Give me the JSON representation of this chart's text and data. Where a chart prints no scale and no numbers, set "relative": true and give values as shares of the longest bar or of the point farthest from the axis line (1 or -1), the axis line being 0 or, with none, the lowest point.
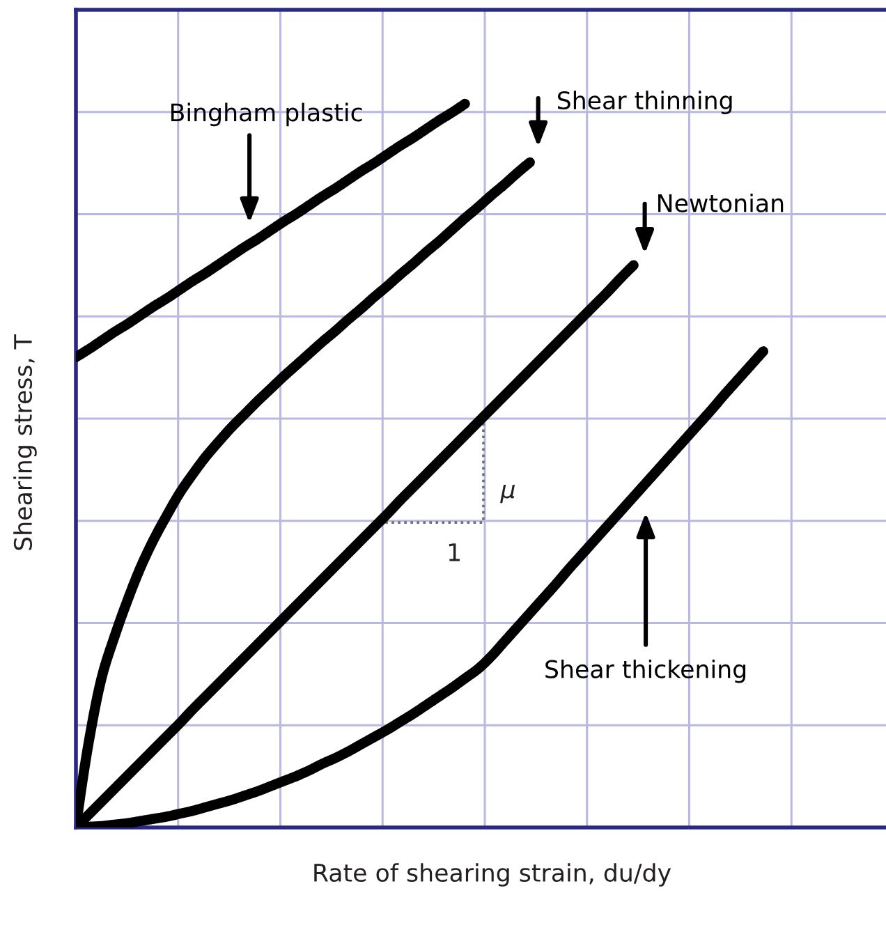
{
  "chart_data": {
    "type": "line",
    "relative": true,
    "grid": true,
    "xlabel": "Rate of shearing strain, du/dy",
    "ylabel": "Shearing stress, T",
    "categories": [
      null,
      null,
      null,
      null,
      null,
      null,
      null,
      null,
      null,
      null,
      null,
      null,
      null,
      null,
      null,
      null,
      null,
      null,
      null,
      null,
      null,
      null,
      null,
      null,
      null,
      null,
      null,
      null,
      null,
      null,
      null,
      null,
      null,
      null,
      null,
      null,
      null,
      null,
      null,
      null,
      null,
      null,
      null,
      null,
      null,
      null,
      null,
      null,
      null,
      null,
      null,
      null,
      null,
      null,
      null,
      null,
      null,
      null,
      null,
      null,
      null,
      null,
      null,
      null
    ],
    "series": [
      {
        "name": "Bingham plastic",
        "color": "#000000",
        "values": [
          0.65,
          0.661,
          0.673,
          0.685,
          0.696,
          0.708,
          0.72,
          0.731,
          0.743,
          0.755,
          0.766,
          0.778,
          0.79,
          0.802,
          0.813,
          0.825,
          0.837,
          0.848,
          0.86,
          0.872,
          0.883,
          0.895,
          0.907,
          0.918,
          0.93,
          0.942,
          0.953,
          0.965,
          0.977,
          0.988,
          1.0,
          null,
          null,
          null,
          null,
          null,
          null,
          null,
          null,
          null,
          null,
          null,
          null,
          null,
          null,
          null,
          null,
          null,
          null,
          null,
          null,
          null,
          null,
          null,
          null,
          null,
          null,
          null,
          null,
          null,
          null,
          null,
          null,
          null
        ]
      },
      {
        "name": "Shear thinning",
        "color": "#000000",
        "values": [
          0,
          0.119,
          0.208,
          0.265,
          0.315,
          0.36,
          0.398,
          0.431,
          0.462,
          0.488,
          0.512,
          0.533,
          0.553,
          0.571,
          0.589,
          0.606,
          0.623,
          0.639,
          0.655,
          0.671,
          0.686,
          0.702,
          0.717,
          0.733,
          0.748,
          0.764,
          0.779,
          0.795,
          0.81,
          0.826,
          0.842,
          0.857,
          0.873,
          0.888,
          0.904,
          0.919,
          null,
          null,
          null,
          null,
          null,
          null,
          null,
          null,
          null,
          null,
          null,
          null,
          null,
          null,
          null,
          null,
          null,
          null,
          null,
          null,
          null,
          null,
          null,
          null,
          null,
          null,
          null,
          null
        ]
      },
      {
        "name": "Newtonian",
        "color": "#000000",
        "values": [
          0,
          0.018,
          0.036,
          0.054,
          0.072,
          0.09,
          0.108,
          0.126,
          0.144,
          0.163,
          0.181,
          0.199,
          0.217,
          0.235,
          0.253,
          0.271,
          0.289,
          0.307,
          0.325,
          0.343,
          0.361,
          0.379,
          0.397,
          0.415,
          0.433,
          0.452,
          0.47,
          0.488,
          0.506,
          0.524,
          0.542,
          0.56,
          0.578,
          0.596,
          0.614,
          0.632,
          0.65,
          0.668,
          0.686,
          0.704,
          0.722,
          0.74,
          0.759,
          0.777,
          null,
          null,
          null,
          null,
          null,
          null,
          null,
          null,
          null,
          null,
          null,
          null,
          null,
          null,
          null,
          null,
          null,
          null,
          null,
          null
        ]
      },
      {
        "name": "Shear thickening",
        "color": "#000000",
        "values": [
          0,
          0.001,
          0.002,
          0.004,
          0.006,
          0.009,
          0.012,
          0.015,
          0.019,
          0.023,
          0.028,
          0.033,
          0.038,
          0.044,
          0.05,
          0.057,
          0.064,
          0.071,
          0.079,
          0.088,
          0.096,
          0.105,
          0.115,
          0.125,
          0.135,
          0.146,
          0.157,
          0.169,
          0.181,
          0.193,
          0.206,
          0.219,
          0.236,
          0.256,
          0.276,
          0.296,
          0.316,
          0.336,
          0.357,
          0.377,
          0.397,
          0.417,
          0.437,
          0.457,
          0.477,
          0.497,
          0.517,
          0.537,
          0.557,
          0.577,
          0.598,
          0.618,
          0.638,
          0.658,
          null,
          null,
          null,
          null,
          null,
          null,
          null,
          null,
          null,
          null
        ]
      }
    ],
    "annotations": [
      "1",
      "μ"
    ]
  }
}
